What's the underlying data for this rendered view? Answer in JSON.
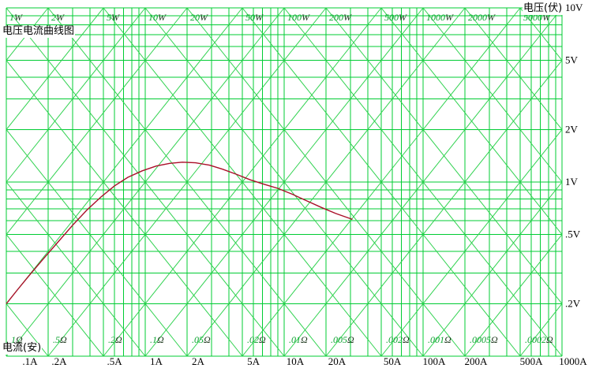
{
  "chart_data": {
    "type": "line",
    "scale": "log-log",
    "title": "电压电流曲线图",
    "grid": true,
    "legend": "none",
    "x_axis": {
      "label": "电流(安)",
      "unit": "A",
      "min": 0.1,
      "max": 1000,
      "ticks": [
        {
          "value": 0.1,
          "label": ".1A"
        },
        {
          "value": 0.2,
          "label": ".2A"
        },
        {
          "value": 0.5,
          "label": ".5A"
        },
        {
          "value": 1,
          "label": "1A"
        },
        {
          "value": 2,
          "label": "2A"
        },
        {
          "value": 5,
          "label": "5A"
        },
        {
          "value": 10,
          "label": "10A"
        },
        {
          "value": 20,
          "label": "20A"
        },
        {
          "value": 50,
          "label": "50A"
        },
        {
          "value": 100,
          "label": "100A"
        },
        {
          "value": 200,
          "label": "200A"
        },
        {
          "value": 500,
          "label": "500A"
        },
        {
          "value": 1000,
          "label": "1000A"
        }
      ]
    },
    "y_axis": {
      "label": "电压(伏)",
      "unit": "V",
      "min": 0.1,
      "max": 10,
      "ticks": [
        {
          "value": 10,
          "label": "10V"
        },
        {
          "value": 5,
          "label": "5V"
        },
        {
          "value": 2,
          "label": "2V"
        },
        {
          "value": 1,
          "label": "1V"
        },
        {
          "value": 0.5,
          "label": ".5V"
        },
        {
          "value": 0.2,
          "label": ".2V"
        }
      ]
    },
    "grid_multipliers": [
      1,
      2,
      3,
      4,
      5,
      6,
      7,
      8,
      9
    ],
    "power_lines": {
      "unit": "W",
      "labeled": [
        {
          "value": 1,
          "label": "1W"
        },
        {
          "value": 2,
          "label": "2W"
        },
        {
          "value": 5,
          "label": "5W"
        },
        {
          "value": 10,
          "label": "10W"
        },
        {
          "value": 20,
          "label": "20W"
        },
        {
          "value": 50,
          "label": "50W"
        },
        {
          "value": 100,
          "label": "100W"
        },
        {
          "value": 200,
          "label": "200W"
        },
        {
          "value": 500,
          "label": "500W"
        },
        {
          "value": 1000,
          "label": "1000W"
        },
        {
          "value": 2000,
          "label": "2000W"
        },
        {
          "value": 5000,
          "label": "5000W"
        }
      ],
      "unlabeled": [
        0.01,
        0.02,
        0.05,
        0.1,
        0.2,
        0.5
      ]
    },
    "resistance_lines": {
      "unit": "Ω",
      "labeled": [
        {
          "value": 1,
          "label": "1Ω"
        },
        {
          "value": 0.5,
          "label": ".5Ω"
        },
        {
          "value": 0.2,
          "label": ".2Ω"
        },
        {
          "value": 0.1,
          "label": ".1Ω"
        },
        {
          "value": 0.05,
          "label": ".05Ω"
        },
        {
          "value": 0.02,
          "label": ".02Ω"
        },
        {
          "value": 0.01,
          "label": ".01Ω"
        },
        {
          "value": 0.005,
          "label": ".005Ω"
        },
        {
          "value": 0.002,
          "label": ".002Ω"
        },
        {
          "value": 0.001,
          "label": ".001Ω"
        },
        {
          "value": 0.0005,
          "label": ".0005Ω"
        },
        {
          "value": 0.0002,
          "label": ".0002Ω"
        }
      ],
      "unlabeled": [
        2,
        5,
        10,
        20,
        50,
        100
      ]
    },
    "series": [
      {
        "points_unit": [
          "A",
          "V"
        ],
        "points": [
          [
            0.1,
            0.2
          ],
          [
            0.12,
            0.24
          ],
          [
            0.15,
            0.298
          ],
          [
            0.19,
            0.372
          ],
          [
            0.24,
            0.46
          ],
          [
            0.3,
            0.565
          ],
          [
            0.38,
            0.69
          ],
          [
            0.48,
            0.82
          ],
          [
            0.6,
            0.95
          ],
          [
            0.75,
            1.065
          ],
          [
            0.95,
            1.16
          ],
          [
            1.2,
            1.235
          ],
          [
            1.5,
            1.28
          ],
          [
            1.85,
            1.3
          ],
          [
            2.3,
            1.29
          ],
          [
            2.9,
            1.25
          ],
          [
            3.6,
            1.185
          ],
          [
            4.5,
            1.11
          ],
          [
            5.7,
            1.03
          ],
          [
            7.2,
            0.97
          ],
          [
            9.0,
            0.92
          ],
          [
            11.5,
            0.85
          ],
          [
            14.5,
            0.78
          ],
          [
            18.5,
            0.715
          ],
          [
            23.5,
            0.66
          ],
          [
            31.0,
            0.61
          ]
        ]
      }
    ],
    "colors": {
      "grid": "#00cc33",
      "diagonal": "#2fd24f",
      "curve": "#aa0e28",
      "label_green": "#0aa32e",
      "label_unit_dark": "#243d24",
      "text": "#000000",
      "background": "#ffffff"
    }
  }
}
